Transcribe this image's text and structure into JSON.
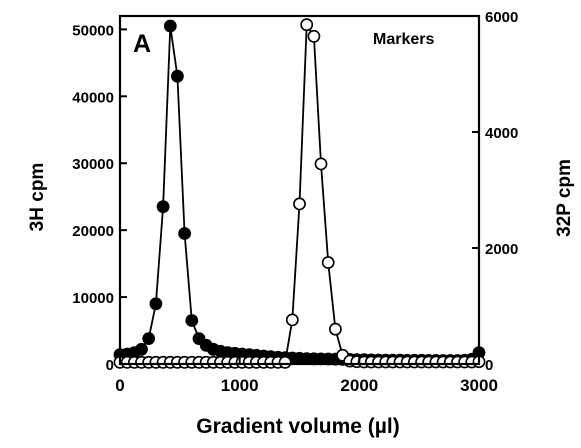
{
  "chart_data": {
    "type": "line",
    "panel_label": "A",
    "annotation": "Markers",
    "xlabel": "Gradient volume (µl)",
    "ylabel_left": "3H  cpm",
    "ylabel_right": "32P  cpm",
    "xlim": [
      0,
      3000
    ],
    "ylim_left": [
      0,
      52000
    ],
    "ylim_right": [
      0,
      6000
    ],
    "xticks": [
      0,
      1000,
      2000,
      3000
    ],
    "xtick_labels": [
      "0",
      "1000",
      "2000",
      "3000"
    ],
    "yticks_left": [
      0,
      10000,
      20000,
      30000,
      40000,
      50000
    ],
    "ytick_labels_left": [
      "0",
      "10000",
      "20000",
      "30000",
      "40000",
      "50000"
    ],
    "yticks_right": [
      0,
      2000,
      4000,
      6000
    ],
    "ytick_labels_right": [
      "0",
      "2000",
      "4000",
      "6000"
    ],
    "grid": false,
    "legend": "none",
    "series": [
      {
        "axis": "left",
        "marker": "filled-circle",
        "color": "#000000",
        "x": [
          0,
          60,
          120,
          180,
          240,
          300,
          360,
          420,
          480,
          540,
          600,
          660,
          720,
          780,
          840,
          900,
          960,
          1020,
          1080,
          1140,
          1200,
          1260,
          1320,
          1380,
          1440,
          1500,
          1560,
          1620,
          1680,
          1740,
          1800,
          1860,
          1920,
          1980,
          2040,
          2100,
          2160,
          2220,
          2280,
          2340,
          2400,
          2460,
          2520,
          2580,
          2640,
          2700,
          2760,
          2820,
          2880,
          2940,
          3000
        ],
        "values": [
          1400,
          1500,
          1700,
          2200,
          3800,
          9000,
          23500,
          50500,
          43000,
          19500,
          6500,
          3800,
          2800,
          2200,
          1900,
          1700,
          1600,
          1500,
          1400,
          1300,
          1200,
          1100,
          1000,
          950,
          900,
          850,
          800,
          780,
          760,
          740,
          720,
          700,
          680,
          660,
          640,
          620,
          600,
          590,
          580,
          570,
          560,
          550,
          550,
          540,
          540,
          530,
          530,
          530,
          550,
          700,
          1700
        ]
      },
      {
        "axis": "right",
        "marker": "open-circle",
        "color": "#000000",
        "x": [
          0,
          60,
          120,
          180,
          240,
          300,
          360,
          420,
          480,
          540,
          600,
          660,
          720,
          780,
          840,
          900,
          960,
          1020,
          1080,
          1140,
          1200,
          1260,
          1320,
          1380,
          1440,
          1500,
          1560,
          1620,
          1680,
          1740,
          1800,
          1860,
          1920,
          1980,
          2040,
          2100,
          2160,
          2220,
          2280,
          2340,
          2400,
          2460,
          2520,
          2580,
          2640,
          2700,
          2760,
          2820,
          2880,
          2940,
          3000
        ],
        "values": [
          30,
          30,
          30,
          30,
          30,
          30,
          30,
          30,
          30,
          30,
          30,
          30,
          30,
          30,
          30,
          30,
          30,
          30,
          30,
          30,
          30,
          30,
          30,
          30,
          760,
          2760,
          5850,
          5650,
          3450,
          1750,
          600,
          150,
          50,
          40,
          35,
          35,
          35,
          35,
          35,
          35,
          35,
          35,
          35,
          35,
          35,
          35,
          35,
          35,
          35,
          35,
          40
        ]
      }
    ]
  }
}
